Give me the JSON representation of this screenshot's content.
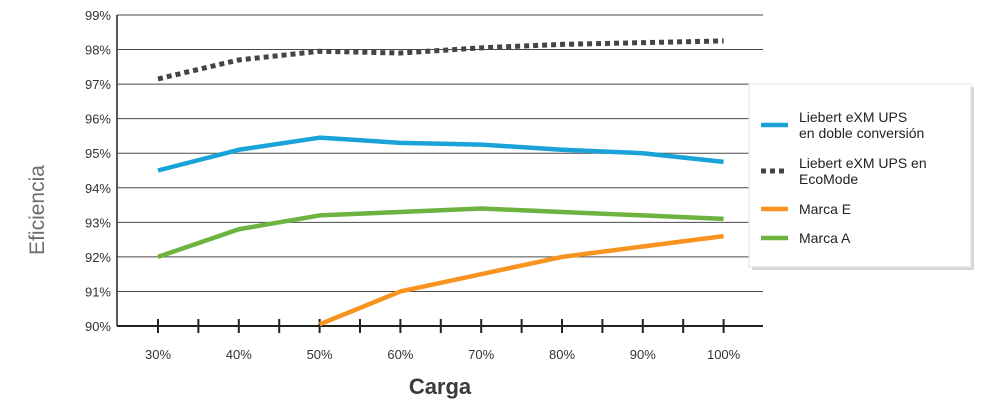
{
  "chart_data": {
    "type": "line",
    "title": "",
    "xlabel": "Carga",
    "ylabel": "Eficiencia",
    "categories": [
      "30%",
      "40%",
      "50%",
      "60%",
      "70%",
      "80%",
      "90%",
      "100%"
    ],
    "y_ticks": [
      "90%",
      "91%",
      "92%",
      "93%",
      "94%",
      "95%",
      "96%",
      "97%",
      "98%",
      "99%"
    ],
    "ylim": [
      90,
      99
    ],
    "grid": "horizontal",
    "legend_position": "right",
    "series": [
      {
        "name": "Liebert eXM UPS en doble conversión",
        "legend_lines": [
          "Liebert eXM UPS",
          "en doble conversión"
        ],
        "color": "#1aa3d9",
        "style": "solid",
        "values": [
          94.5,
          95.1,
          95.45,
          95.3,
          95.25,
          95.1,
          95.0,
          94.75
        ]
      },
      {
        "name": "Liebert eXM UPS en EcoMode",
        "legend_lines": [
          "Liebert eXM UPS en",
          "EcoMode"
        ],
        "color": "#444444",
        "style": "dotted",
        "values": [
          97.15,
          97.7,
          97.95,
          97.9,
          98.05,
          98.15,
          98.2,
          98.25
        ]
      },
      {
        "name": "Marca E",
        "legend_lines": [
          "Marca E"
        ],
        "color": "#f7931e",
        "style": "solid",
        "values": [
          null,
          null,
          90.05,
          91.0,
          91.5,
          92.0,
          92.3,
          92.6
        ]
      },
      {
        "name": "Marca A",
        "legend_lines": [
          "Marca A"
        ],
        "color": "#6cb33f",
        "style": "solid",
        "values": [
          92.0,
          92.8,
          93.2,
          93.3,
          93.4,
          93.3,
          93.2,
          93.1
        ]
      }
    ]
  }
}
